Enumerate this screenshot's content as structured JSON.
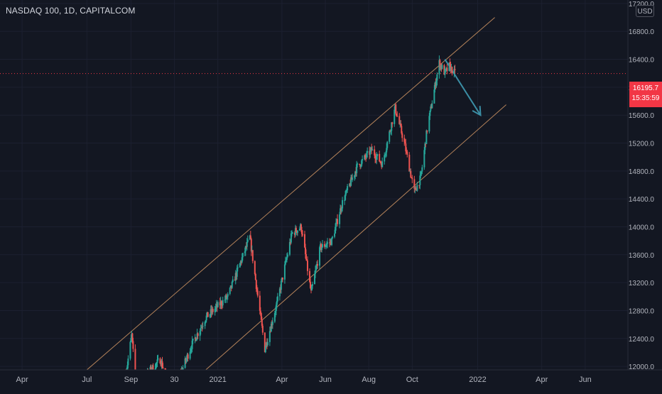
{
  "title": "NASDAQ 100, 1D, CAPITALCOM",
  "currency": "USD",
  "last_price": {
    "value": 16195.7,
    "label": "16195.7",
    "countdown": "15:35:59"
  },
  "colors": {
    "background": "#131722",
    "up": "#26a69a",
    "down": "#ef5350",
    "channel": "#b5835a",
    "arrow": "#3b8ea5",
    "price_line": "#f23645",
    "axis_text": "#b2b5be"
  },
  "chart_data": {
    "type": "candlestick",
    "y_axis": {
      "ticks": [
        12000,
        12400,
        12800,
        13200,
        13600,
        14000,
        14400,
        14800,
        15200,
        15600,
        16000,
        16400,
        16800,
        17200
      ],
      "tick_labels": [
        "12000.0",
        "12400.0",
        "12800.0",
        "13200.0",
        "13600.0",
        "14000.0",
        "14400.0",
        "14800.0",
        "15200.0",
        "15600.0",
        "16000.0",
        "16400.0",
        "16800.0",
        "17200.0"
      ],
      "range": [
        11950,
        17250
      ]
    },
    "x_axis": {
      "range": [
        "2020-03-01",
        "2022-07-31"
      ],
      "ticks": [
        {
          "date": "2020-04-01",
          "label": "Apr"
        },
        {
          "date": "2020-07-01",
          "label": "Jul"
        },
        {
          "date": "2020-09-01",
          "label": "Sep"
        },
        {
          "date": "2020-11-01",
          "label": "30"
        },
        {
          "date": "2021-01-01",
          "label": "2021"
        },
        {
          "date": "2021-04-01",
          "label": "Apr"
        },
        {
          "date": "2021-06-01",
          "label": "Jun"
        },
        {
          "date": "2021-08-01",
          "label": "Aug"
        },
        {
          "date": "2021-10-01",
          "label": "Oct"
        },
        {
          "date": "2022-01-01",
          "label": "2022"
        },
        {
          "date": "2022-04-01",
          "label": "Apr"
        },
        {
          "date": "2022-06-01",
          "label": "Jun"
        }
      ]
    },
    "price_path": [
      {
        "date": "2020-08-25",
        "price": 11900
      },
      {
        "date": "2020-09-02",
        "price": 12450
      },
      {
        "date": "2020-09-08",
        "price": 11700
      },
      {
        "date": "2020-10-12",
        "price": 12100
      },
      {
        "date": "2020-10-30",
        "price": 11600
      },
      {
        "date": "2020-11-10",
        "price": 11900
      },
      {
        "date": "2020-11-25",
        "price": 12300
      },
      {
        "date": "2020-12-15",
        "price": 12700
      },
      {
        "date": "2021-01-15",
        "price": 13000
      },
      {
        "date": "2021-02-15",
        "price": 13850
      },
      {
        "date": "2021-03-08",
        "price": 12250
      },
      {
        "date": "2021-03-25",
        "price": 12900
      },
      {
        "date": "2021-04-15",
        "price": 13900
      },
      {
        "date": "2021-04-28",
        "price": 14000
      },
      {
        "date": "2021-05-12",
        "price": 13050
      },
      {
        "date": "2021-05-25",
        "price": 13700
      },
      {
        "date": "2021-06-10",
        "price": 13800
      },
      {
        "date": "2021-06-25",
        "price": 14350
      },
      {
        "date": "2021-07-15",
        "price": 14850
      },
      {
        "date": "2021-08-05",
        "price": 15100
      },
      {
        "date": "2021-08-20",
        "price": 14900
      },
      {
        "date": "2021-09-07",
        "price": 15700
      },
      {
        "date": "2021-09-20",
        "price": 15200
      },
      {
        "date": "2021-10-04",
        "price": 14500
      },
      {
        "date": "2021-10-13",
        "price": 14700
      },
      {
        "date": "2021-10-22",
        "price": 15400
      },
      {
        "date": "2021-11-08",
        "price": 16350
      },
      {
        "date": "2021-11-16",
        "price": 16200
      },
      {
        "date": "2021-11-22",
        "price": 16300
      },
      {
        "date": "2021-11-30",
        "price": 16195.7
      }
    ],
    "drawings": {
      "channel_upper": {
        "start": {
          "date": "2020-07-01",
          "price": 11950
        },
        "end": {
          "date": "2022-01-25",
          "price": 17000
        }
      },
      "channel_lower": {
        "start": {
          "date": "2020-12-15",
          "price": 11950
        },
        "end": {
          "date": "2022-02-10",
          "price": 15750
        }
      },
      "arrow_path": [
        {
          "date": "2021-11-16",
          "price": 16400
        },
        {
          "date": "2022-01-05",
          "price": 15600
        },
        {
          "date": "2022-01-08",
          "price": 15540
        }
      ]
    }
  }
}
